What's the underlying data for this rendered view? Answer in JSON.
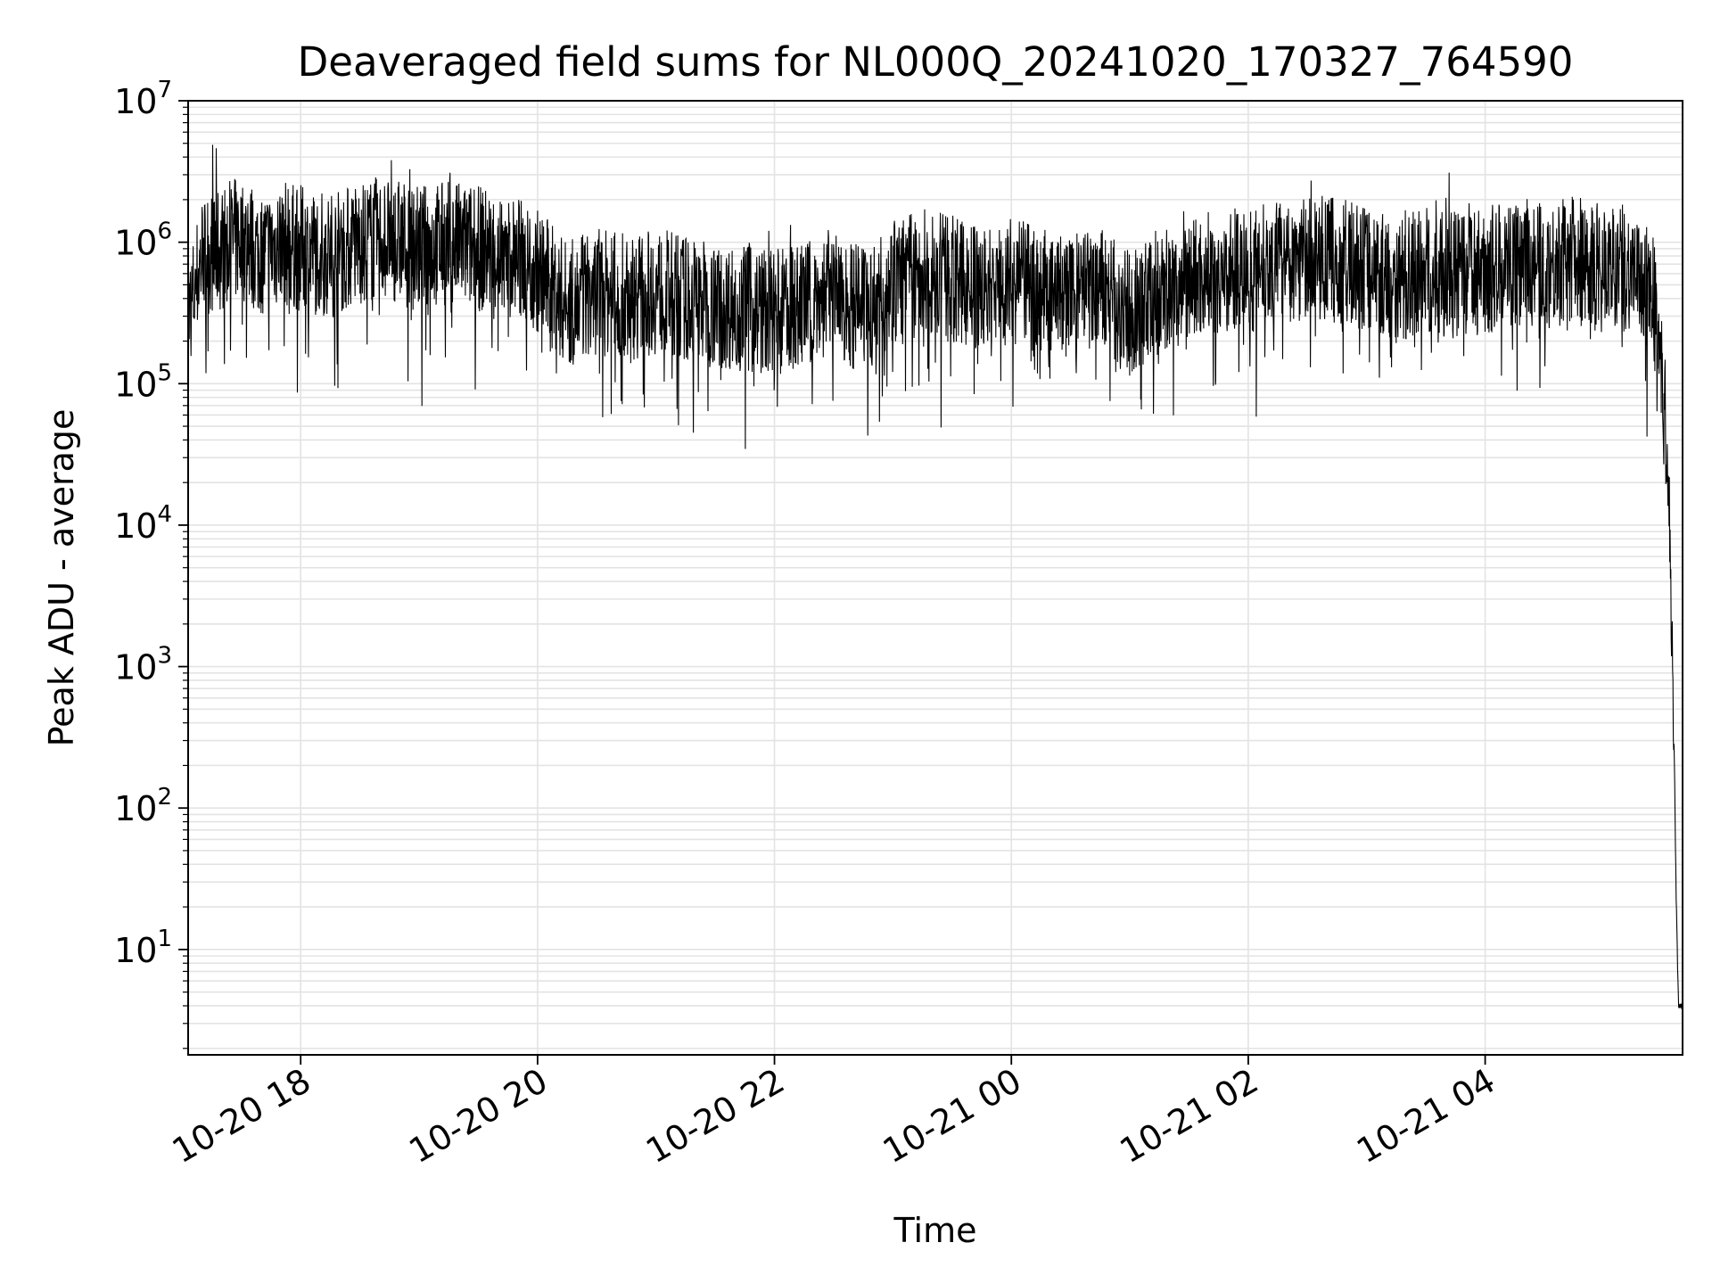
{
  "chart_data": {
    "type": "line",
    "title": "Deaveraged field sums for NL000Q_20241020_170327_764590",
    "xlabel": "Time",
    "ylabel": "Peak ADU - average",
    "yscale": "log",
    "ylim": [
      1.8,
      10000000
    ],
    "xlim": [
      "2024-10-20 17:03",
      "2024-10-21 05:40"
    ],
    "grid": true,
    "line_color": "#000000",
    "x_ticks": [
      {
        "label": "10-20 18",
        "value": "2024-10-20 18:00"
      },
      {
        "label": "10-20 20",
        "value": "2024-10-20 20:00"
      },
      {
        "label": "10-20 22",
        "value": "2024-10-20 22:00"
      },
      {
        "label": "10-21 00",
        "value": "2024-10-21 00:00"
      },
      {
        "label": "10-21 02",
        "value": "2024-10-21 02:00"
      },
      {
        "label": "10-21 04",
        "value": "2024-10-21 04:00"
      }
    ],
    "y_ticks": [
      {
        "base": "10",
        "exp": "1",
        "value": 10
      },
      {
        "base": "10",
        "exp": "2",
        "value": 100
      },
      {
        "base": "10",
        "exp": "3",
        "value": 1000
      },
      {
        "base": "10",
        "exp": "4",
        "value": 10000
      },
      {
        "base": "10",
        "exp": "5",
        "value": 100000
      },
      {
        "base": "10",
        "exp": "6",
        "value": 1000000
      },
      {
        "base": "10",
        "exp": "7",
        "value": 10000000
      }
    ],
    "series": [
      {
        "x": [
          "2024-10-20 17:03",
          "2024-10-20 17:10",
          "2024-10-20 17:20",
          "2024-10-20 17:30",
          "2024-10-20 17:40",
          "2024-10-20 17:50",
          "2024-10-20 18:00",
          "2024-10-20 18:15",
          "2024-10-20 18:30",
          "2024-10-20 18:45",
          "2024-10-20 19:00",
          "2024-10-20 19:15",
          "2024-10-20 19:30",
          "2024-10-20 19:45",
          "2024-10-20 20:00",
          "2024-10-20 20:15",
          "2024-10-20 20:30",
          "2024-10-20 20:45",
          "2024-10-20 21:00",
          "2024-10-20 21:15",
          "2024-10-20 21:30",
          "2024-10-20 21:45",
          "2024-10-20 22:00",
          "2024-10-20 22:15",
          "2024-10-20 22:30",
          "2024-10-20 22:45",
          "2024-10-20 23:00",
          "2024-10-20 23:15",
          "2024-10-20 23:30",
          "2024-10-20 23:45",
          "2024-10-21 00:00",
          "2024-10-21 00:15",
          "2024-10-21 00:30",
          "2024-10-21 00:45",
          "2024-10-21 01:00",
          "2024-10-21 01:15",
          "2024-10-21 01:30",
          "2024-10-21 01:45",
          "2024-10-21 02:00",
          "2024-10-21 02:15",
          "2024-10-21 02:30",
          "2024-10-21 02:45",
          "2024-10-21 03:00",
          "2024-10-21 03:15",
          "2024-10-21 03:30",
          "2024-10-21 03:45",
          "2024-10-21 04:00",
          "2024-10-21 04:15",
          "2024-10-21 04:30",
          "2024-10-21 04:45",
          "2024-10-21 05:00",
          "2024-10-21 05:15",
          "2024-10-21 05:25",
          "2024-10-21 05:30",
          "2024-10-21 05:33",
          "2024-10-21 05:35",
          "2024-10-21 05:37",
          "2024-10-21 05:38",
          "2024-10-21 05:40"
        ],
        "y": [
          300000,
          900000,
          1000000,
          1200000,
          900000,
          1100000,
          1000000,
          900000,
          1100000,
          1200000,
          1000000,
          1100000,
          1000000,
          900000,
          700000,
          400000,
          500000,
          450000,
          500000,
          450000,
          400000,
          380000,
          350000,
          400000,
          500000,
          350000,
          600000,
          700000,
          600000,
          500000,
          600000,
          500000,
          450000,
          500000,
          350000,
          500000,
          600000,
          700000,
          700000,
          800000,
          900000,
          800000,
          750000,
          600000,
          700000,
          650000,
          700000,
          800000,
          750000,
          850000,
          800000,
          700000,
          500000,
          100000,
          20000,
          1000,
          15,
          4,
          4
        ]
      }
    ]
  }
}
